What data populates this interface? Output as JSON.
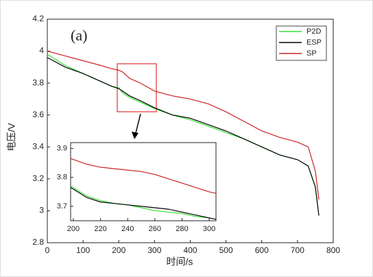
{
  "chart_data": [
    {
      "type": "line",
      "ylabel": "电压/V",
      "xlabel": "时间/s",
      "annotation": "(a)",
      "x": [
        0,
        50,
        100,
        150,
        180,
        200,
        210,
        230,
        260,
        300,
        350,
        400,
        450,
        500,
        550,
        600,
        650,
        700,
        730,
        750,
        760
      ],
      "series": [
        {
          "name": "P2D",
          "color": "#33dd33",
          "values": [
            3.98,
            3.91,
            3.86,
            3.81,
            3.78,
            3.77,
            3.74,
            3.71,
            3.68,
            3.64,
            3.6,
            3.57,
            3.53,
            3.49,
            3.45,
            3.4,
            3.35,
            3.32,
            3.28,
            3.15,
            2.97
          ]
        },
        {
          "name": "ESP",
          "color": "#000000",
          "values": [
            3.96,
            3.9,
            3.86,
            3.81,
            3.78,
            3.765,
            3.75,
            3.72,
            3.69,
            3.645,
            3.6,
            3.58,
            3.54,
            3.5,
            3.45,
            3.4,
            3.35,
            3.32,
            3.28,
            3.15,
            2.97
          ]
        },
        {
          "name": "SP",
          "color": "#cc2222",
          "values": [
            4.0,
            3.97,
            3.94,
            3.91,
            3.89,
            3.88,
            3.87,
            3.83,
            3.8,
            3.75,
            3.72,
            3.7,
            3.67,
            3.62,
            3.56,
            3.5,
            3.46,
            3.43,
            3.4,
            3.25,
            3.07
          ]
        }
      ],
      "xlim": [
        0,
        800
      ],
      "xticks": [
        0,
        100,
        200,
        300,
        400,
        500,
        600,
        700,
        800
      ],
      "ylim": [
        2.8,
        4.2
      ],
      "yticks": [
        {
          "value": 2.8,
          "label": "2.8"
        },
        3,
        3.2,
        3.4,
        3.6,
        3.8,
        4,
        4.2
      ],
      "legend": "upper right"
    },
    {
      "type": "line",
      "x": [
        198,
        210,
        220,
        230,
        240,
        250,
        260,
        270,
        280,
        290,
        300,
        305
      ],
      "series": [
        {
          "color": "#33dd33",
          "values": [
            3.77,
            3.735,
            3.72,
            3.71,
            3.705,
            3.695,
            3.685,
            3.68,
            3.675,
            3.665,
            3.66,
            3.655
          ]
        },
        {
          "color": "#000000",
          "values": [
            3.765,
            3.73,
            3.715,
            3.71,
            3.705,
            3.7,
            3.695,
            3.69,
            3.68,
            3.67,
            3.66,
            3.655
          ]
        },
        {
          "color": "#cc2222",
          "values": [
            3.865,
            3.845,
            3.835,
            3.83,
            3.825,
            3.82,
            3.81,
            3.795,
            3.78,
            3.765,
            3.75,
            3.745
          ]
        }
      ],
      "xlim": [
        198,
        305
      ],
      "xticks": [
        200,
        220,
        240,
        260,
        280,
        300
      ],
      "ylim": [
        3.65,
        3.92
      ],
      "yticks": [
        3.7,
        3.8,
        3.9
      ]
    }
  ]
}
